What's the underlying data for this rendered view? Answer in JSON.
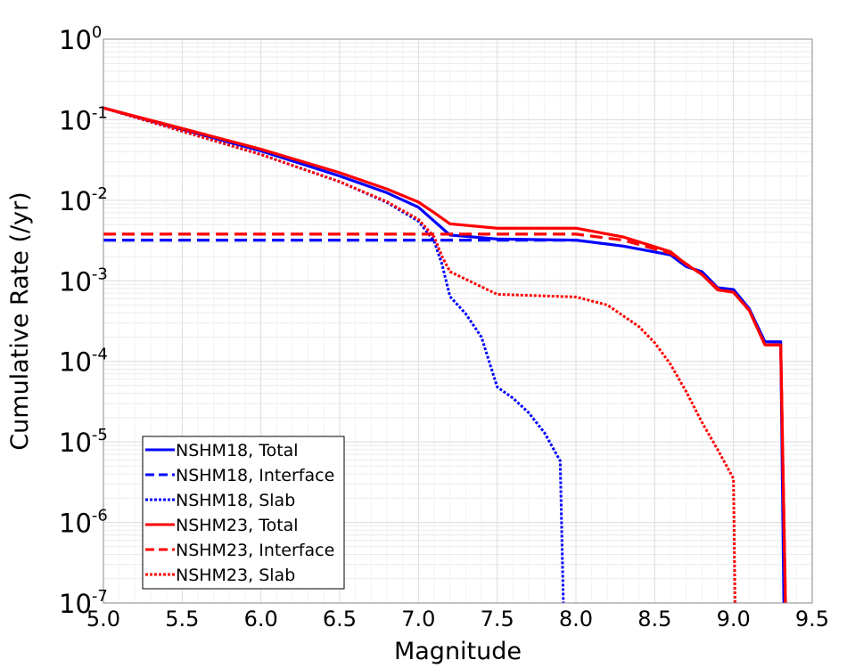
{
  "chart_data": {
    "type": "line",
    "title": "",
    "xlabel": "Magnitude",
    "ylabel": "Cumulative Rate (/yr)",
    "xlim": [
      5.0,
      9.5
    ],
    "ylim": [
      1e-07,
      1
    ],
    "yscale": "log",
    "grid": true,
    "legend_position": "bottom-left",
    "x_ticks": [
      "5.0",
      "5.5",
      "6.0",
      "6.5",
      "7.0",
      "7.5",
      "8.0",
      "8.5",
      "9.0",
      "9.5"
    ],
    "y_ticks": [
      {
        "base": "10",
        "exp": "0"
      },
      {
        "base": "10",
        "exp": "-1"
      },
      {
        "base": "10",
        "exp": "-2"
      },
      {
        "base": "10",
        "exp": "-3"
      },
      {
        "base": "10",
        "exp": "-4"
      },
      {
        "base": "10",
        "exp": "-5"
      },
      {
        "base": "10",
        "exp": "-6"
      },
      {
        "base": "10",
        "exp": "-7"
      }
    ],
    "series": [
      {
        "name": "NSHM18, Total",
        "color": "#0000ff",
        "dash": "solid",
        "points": [
          [
            5.0,
            0.14
          ],
          [
            5.5,
            0.076
          ],
          [
            6.0,
            0.041
          ],
          [
            6.5,
            0.02
          ],
          [
            6.8,
            0.0124
          ],
          [
            7.0,
            0.0082
          ],
          [
            7.1,
            0.0055
          ],
          [
            7.2,
            0.0037
          ],
          [
            7.5,
            0.0033
          ],
          [
            8.0,
            0.0032
          ],
          [
            8.3,
            0.0027
          ],
          [
            8.6,
            0.0021
          ],
          [
            8.7,
            0.0015
          ],
          [
            8.8,
            0.0013
          ],
          [
            8.9,
            0.00082
          ],
          [
            9.0,
            0.00078
          ],
          [
            9.1,
            0.00045
          ],
          [
            9.2,
            0.000175
          ],
          [
            9.3,
            0.000175
          ],
          [
            9.32,
            1e-07
          ]
        ]
      },
      {
        "name": "NSHM18, Interface",
        "color": "#0000ff",
        "dash": "dashed",
        "points": [
          [
            5.0,
            0.0032
          ],
          [
            8.0,
            0.0032
          ]
        ]
      },
      {
        "name": "NSHM18, Slab",
        "color": "#0000ff",
        "dash": "dotted",
        "points": [
          [
            5.0,
            0.14
          ],
          [
            5.5,
            0.072
          ],
          [
            6.0,
            0.037
          ],
          [
            6.5,
            0.017
          ],
          [
            6.8,
            0.0094
          ],
          [
            7.0,
            0.0055
          ],
          [
            7.1,
            0.0031
          ],
          [
            7.15,
            0.0016
          ],
          [
            7.2,
            0.00064
          ],
          [
            7.3,
            0.00039
          ],
          [
            7.4,
            0.0002
          ],
          [
            7.5,
            4.8e-05
          ],
          [
            7.6,
            3.5e-05
          ],
          [
            7.7,
            2.3e-05
          ],
          [
            7.8,
            1.3e-05
          ],
          [
            7.9,
            5.8e-06
          ],
          [
            7.92,
            1e-07
          ]
        ]
      },
      {
        "name": "NSHM23, Total",
        "color": "#ff0000",
        "dash": "solid",
        "points": [
          [
            5.0,
            0.14
          ],
          [
            5.5,
            0.078
          ],
          [
            6.0,
            0.043
          ],
          [
            6.5,
            0.022
          ],
          [
            6.8,
            0.0138
          ],
          [
            7.0,
            0.0095
          ],
          [
            7.1,
            0.007
          ],
          [
            7.2,
            0.0051
          ],
          [
            7.5,
            0.0045
          ],
          [
            8.0,
            0.0045
          ],
          [
            8.3,
            0.0035
          ],
          [
            8.6,
            0.0023
          ],
          [
            8.7,
            0.0016
          ],
          [
            8.8,
            0.0012
          ],
          [
            8.9,
            0.00077
          ],
          [
            9.0,
            0.00072
          ],
          [
            9.1,
            0.00043
          ],
          [
            9.2,
            0.00016
          ],
          [
            9.3,
            0.00016
          ],
          [
            9.33,
            1e-07
          ]
        ]
      },
      {
        "name": "NSHM23, Interface",
        "color": "#ff0000",
        "dash": "dashed",
        "points": [
          [
            5.0,
            0.0038
          ],
          [
            8.0,
            0.0038
          ],
          [
            8.3,
            0.0032
          ],
          [
            8.6,
            0.0022
          ],
          [
            8.8,
            0.0012
          ],
          [
            8.9,
            0.0008
          ],
          [
            9.0,
            0.00072
          ],
          [
            9.1,
            0.00043
          ],
          [
            9.2,
            0.00016
          ],
          [
            9.3,
            0.00016
          ],
          [
            9.33,
            1e-07
          ]
        ]
      },
      {
        "name": "NSHM23, Slab",
        "color": "#ff0000",
        "dash": "dotted",
        "points": [
          [
            5.0,
            0.14
          ],
          [
            5.5,
            0.072
          ],
          [
            6.0,
            0.037
          ],
          [
            6.5,
            0.017
          ],
          [
            6.8,
            0.0096
          ],
          [
            7.0,
            0.0058
          ],
          [
            7.1,
            0.0035
          ],
          [
            7.15,
            0.002
          ],
          [
            7.2,
            0.0013
          ],
          [
            7.5,
            0.00068
          ],
          [
            8.0,
            0.00063
          ],
          [
            8.2,
            0.0005
          ],
          [
            8.4,
            0.00027
          ],
          [
            8.5,
            0.00017
          ],
          [
            8.6,
            9.2e-05
          ],
          [
            8.7,
            4.2e-05
          ],
          [
            8.8,
            1.75e-05
          ],
          [
            8.9,
            8e-06
          ],
          [
            9.0,
            3.5e-06
          ],
          [
            9.01,
            1e-07
          ]
        ]
      }
    ]
  }
}
